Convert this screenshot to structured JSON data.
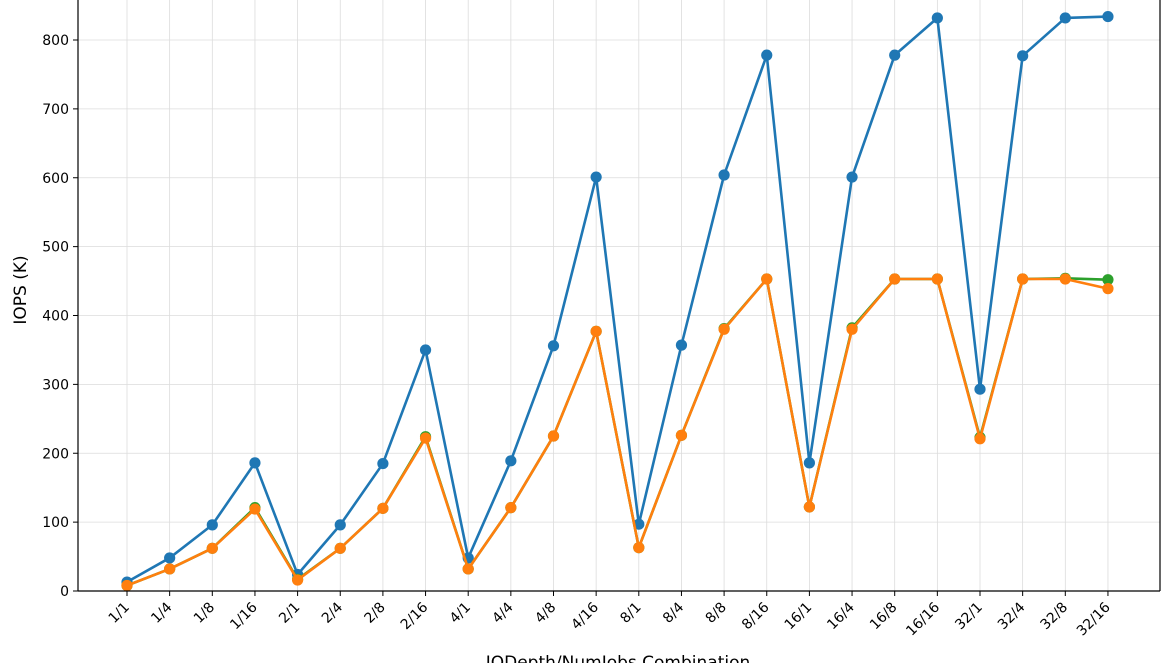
{
  "chart_data": {
    "type": "line",
    "xlabel": "IODepth/NumJobs Combination",
    "ylabel": "IOPS (K)",
    "ylim": [
      0,
      860
    ],
    "yticks": [
      0,
      100,
      200,
      300,
      400,
      500,
      600,
      700,
      800
    ],
    "grid": true,
    "categories": [
      "1/1",
      "1/4",
      "1/8",
      "1/16",
      "2/1",
      "2/4",
      "2/8",
      "2/16",
      "4/1",
      "4/4",
      "4/8",
      "4/16",
      "8/1",
      "8/4",
      "8/8",
      "8/16",
      "16/1",
      "16/4",
      "16/8",
      "16/16",
      "32/1",
      "32/4",
      "32/8",
      "32/16"
    ],
    "series": [
      {
        "color": "#1f77b4",
        "values": [
          13,
          48,
          96,
          186,
          24,
          96,
          185,
          350,
          48,
          189,
          356,
          601,
          97,
          357,
          604,
          778,
          186,
          601,
          778,
          832,
          293,
          777,
          832,
          834
        ]
      },
      {
        "color": "#2ca02c",
        "values": [
          8,
          32,
          62,
          121,
          17,
          62,
          120,
          224,
          32,
          121,
          225,
          377,
          63,
          226,
          381,
          453,
          122,
          382,
          453,
          453,
          223,
          453,
          454,
          452
        ]
      },
      {
        "color": "#ff7f0e",
        "values": [
          8,
          32,
          62,
          119,
          16,
          62,
          120,
          222,
          32,
          121,
          225,
          377,
          63,
          226,
          380,
          453,
          122,
          380,
          453,
          453,
          221,
          453,
          453,
          439
        ]
      }
    ]
  }
}
